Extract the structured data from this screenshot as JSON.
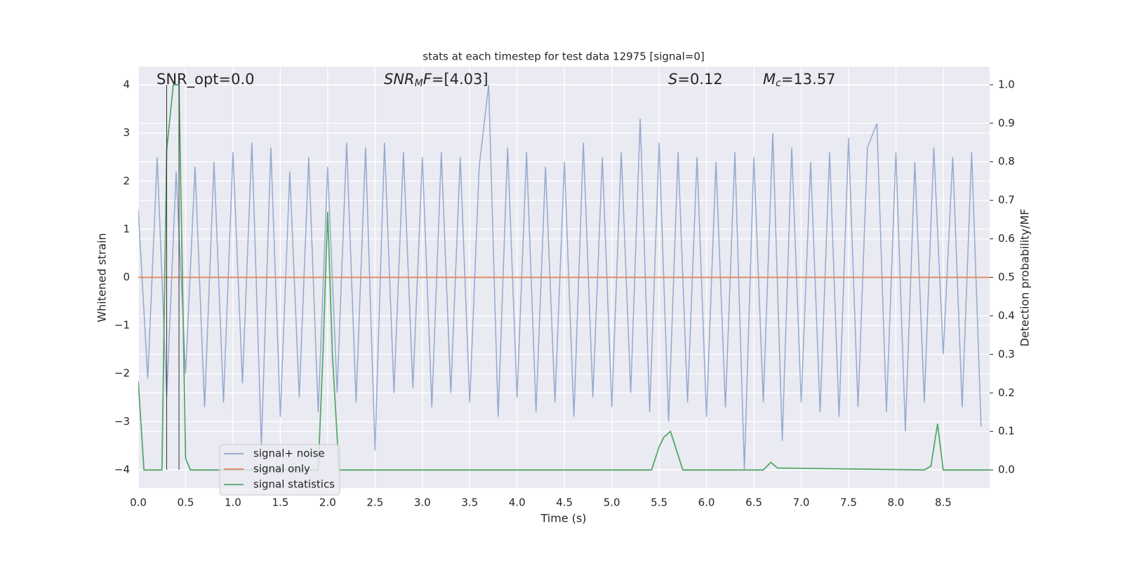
{
  "chart_data": {
    "type": "line",
    "title": "stats at each timestep for test data 12975 [signal=0]",
    "xlabel": "Time (s)",
    "ylabel": "Whitened strain",
    "y2label": "Detection probability/MF",
    "xlim": [
      0,
      8.99
    ],
    "ylim": [
      -4.38,
      4.38
    ],
    "y2lim": [
      -0.047,
      1.047
    ],
    "xticks": [
      {
        "value": 0,
        "label": "0.0"
      },
      0.5,
      {
        "value": 1,
        "label": "1.0"
      },
      1.5,
      {
        "value": 2,
        "label": "2.0"
      },
      2.5,
      {
        "value": 3,
        "label": "3.0"
      },
      3.5,
      {
        "value": 4,
        "label": "4.0"
      },
      4.5,
      {
        "value": 5,
        "label": "5.0"
      },
      5.5,
      {
        "value": 6,
        "label": "6.0"
      },
      6.5,
      {
        "value": 7,
        "label": "7.0"
      },
      7.5,
      {
        "value": 8,
        "label": "8.0"
      },
      8.5
    ],
    "yticks": [
      {
        "value": -4,
        "label": "−4"
      },
      {
        "value": -3,
        "label": "−3"
      },
      {
        "value": -2,
        "label": "−2"
      },
      {
        "value": -1,
        "label": "−1"
      },
      0,
      1,
      2,
      3,
      4
    ],
    "y2ticks": [
      {
        "value": 0,
        "label": "0.0"
      },
      0.1,
      0.2,
      0.3,
      0.4,
      0.5,
      0.6,
      0.7,
      0.8,
      0.9,
      {
        "value": 1,
        "label": "1.0"
      }
    ],
    "grid": true,
    "legend": "lower left",
    "vlines": [
      0.3,
      0.43
    ],
    "annotations": [
      {
        "main": "SNR_opt=0.0"
      },
      {
        "main": "SNR",
        "sub": "M",
        "tail": "F=[4.03]"
      },
      {
        "main": "S",
        "tail": "=0.12"
      },
      {
        "main": "M",
        "sub": "c",
        "tail": "=13.57"
      }
    ],
    "series": [
      {
        "name": "signal+ noise",
        "color": "#4c72b0",
        "x": [
          0.0,
          0.1,
          0.2,
          0.3,
          0.4,
          0.5,
          0.6,
          0.7,
          0.8,
          0.9,
          1.0,
          1.1,
          1.2,
          1.3,
          1.4,
          1.5,
          1.6,
          1.7,
          1.8,
          1.9,
          2.0,
          2.1,
          2.2,
          2.3,
          2.4,
          2.5,
          2.6,
          2.7,
          2.8,
          2.9,
          3.0,
          3.1,
          3.2,
          3.3,
          3.4,
          3.5,
          3.6,
          3.7,
          3.8,
          3.9,
          4.0,
          4.1,
          4.2,
          4.3,
          4.4,
          4.5,
          4.6,
          4.7,
          4.8,
          4.9,
          5.0,
          5.1,
          5.2,
          5.3,
          5.4,
          5.5,
          5.6,
          5.7,
          5.8,
          5.9,
          6.0,
          6.1,
          6.2,
          6.3,
          6.4,
          6.5,
          6.6,
          6.7,
          6.8,
          6.9,
          7.0,
          7.1,
          7.2,
          7.3,
          7.4,
          7.5,
          7.6,
          7.7,
          7.8,
          7.9,
          8.0,
          8.1,
          8.2,
          8.3,
          8.4,
          8.5,
          8.6,
          8.7,
          8.8,
          8.9
        ],
        "values": [
          1.4,
          -2.1,
          2.5,
          -2.5,
          2.2,
          -2.0,
          2.3,
          -2.7,
          2.4,
          -2.6,
          2.6,
          -2.2,
          2.8,
          -3.5,
          2.7,
          -2.9,
          2.2,
          -2.5,
          2.5,
          -2.8,
          2.3,
          -2.4,
          2.8,
          -2.6,
          2.7,
          -3.6,
          2.8,
          -2.4,
          2.6,
          -2.3,
          2.5,
          -2.7,
          2.6,
          -2.4,
          2.5,
          -2.6,
          2.3,
          4.0,
          -2.9,
          2.7,
          -2.5,
          2.6,
          -2.8,
          2.3,
          -2.6,
          2.4,
          -2.9,
          2.8,
          -2.5,
          2.5,
          -2.7,
          2.6,
          -2.4,
          3.3,
          -2.8,
          2.8,
          -3.0,
          2.6,
          -2.6,
          2.5,
          -2.9,
          2.4,
          -2.7,
          2.6,
          -4.0,
          2.5,
          -2.6,
          3.0,
          -3.4,
          2.7,
          -2.6,
          2.4,
          -2.8,
          2.6,
          -2.9,
          2.9,
          -2.7,
          2.7,
          3.2,
          -2.8,
          2.6,
          -3.2,
          2.4,
          -2.6,
          2.7,
          -1.6,
          2.5,
          -2.7,
          2.6,
          -3.1
        ]
      },
      {
        "name": "signal only",
        "color": "#dd8452",
        "x": [
          0,
          8.99
        ],
        "values": [
          0,
          0
        ]
      },
      {
        "name": "signal statistics",
        "color": "#55a868",
        "axis": "y2",
        "x": [
          0,
          0.06,
          0.25,
          0.3,
          0.37,
          0.43,
          0.5,
          0.55,
          1.9,
          1.95,
          2.0,
          2.05,
          2.12,
          5.42,
          5.5,
          5.55,
          5.62,
          5.75,
          6.6,
          6.68,
          6.75,
          8.3,
          8.37,
          8.44,
          8.5,
          8.99
        ],
        "values": [
          0.23,
          0,
          0,
          0.83,
          1.0,
          1.0,
          0.03,
          0,
          0,
          0.3,
          0.67,
          0.3,
          0,
          0,
          0.06,
          0.085,
          0.1,
          0,
          0,
          0.02,
          0.005,
          0,
          0.01,
          0.12,
          0,
          0
        ]
      }
    ]
  }
}
